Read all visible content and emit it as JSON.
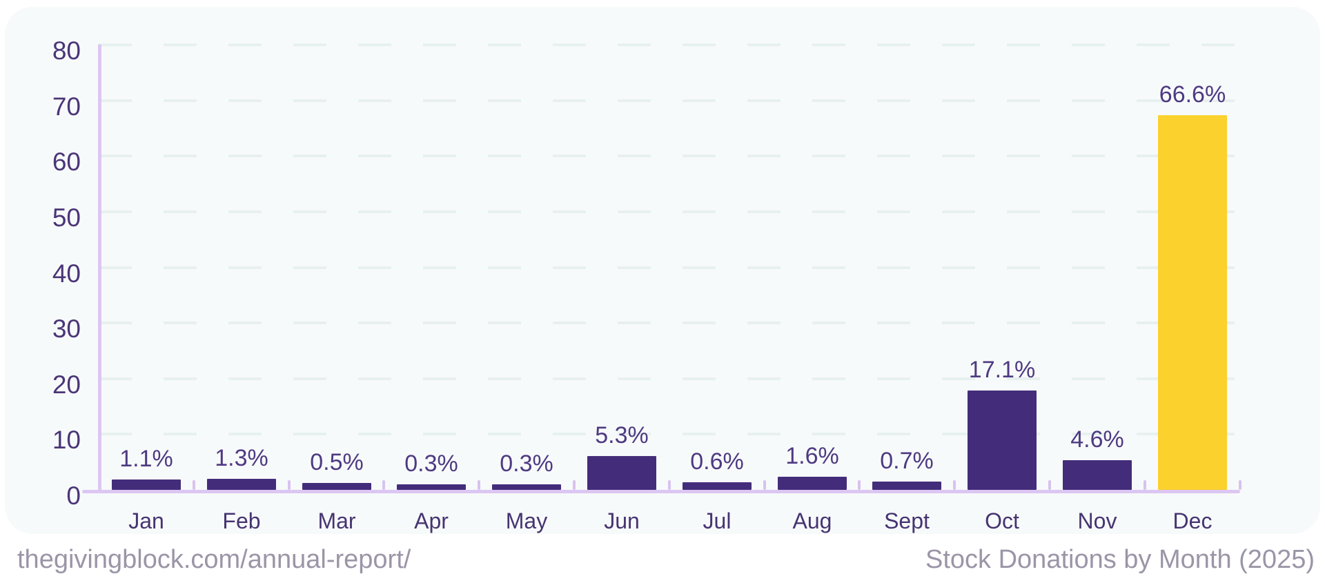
{
  "footer": {
    "left": "thegivingblock.com/annual-report/",
    "right": "Stock Donations by Month (2025)"
  },
  "colors": {
    "card_background": "#f7fafa",
    "page_background": "#ffffff",
    "bar_default": "#432d7a",
    "bar_highlight": "#fbd12d",
    "axis": "#dcc6f2",
    "gridline": "#e7f0ef",
    "axis_text": "#4a3577",
    "value_text": "#4e3a82",
    "footer_text": "#9b95a7"
  },
  "chart_data": {
    "type": "bar",
    "title": "Stock Donations by Month (2025)",
    "source_text": "thegivingblock.com/annual-report/",
    "categories": [
      "Jan",
      "Feb",
      "Mar",
      "Apr",
      "May",
      "Jun",
      "Jul",
      "Aug",
      "Sept",
      "Oct",
      "Nov",
      "Dec"
    ],
    "values": [
      1.1,
      1.3,
      0.5,
      0.3,
      0.3,
      5.3,
      0.6,
      1.6,
      0.7,
      17.1,
      4.6,
      66.6
    ],
    "value_labels": [
      "1.1%",
      "1.3%",
      "0.5%",
      "0.3%",
      "0.3%",
      "5.3%",
      "0.6%",
      "1.6%",
      "0.7%",
      "17.1%",
      "4.6%",
      "66.6%"
    ],
    "unit": "%",
    "xlabel": "",
    "ylabel": "",
    "ylim": [
      0,
      80
    ],
    "yticks": [
      0,
      10,
      20,
      30,
      40,
      50,
      60,
      70,
      80
    ],
    "grid": "horizontal-dashed",
    "legend": "none",
    "highlight_index": 11
  }
}
